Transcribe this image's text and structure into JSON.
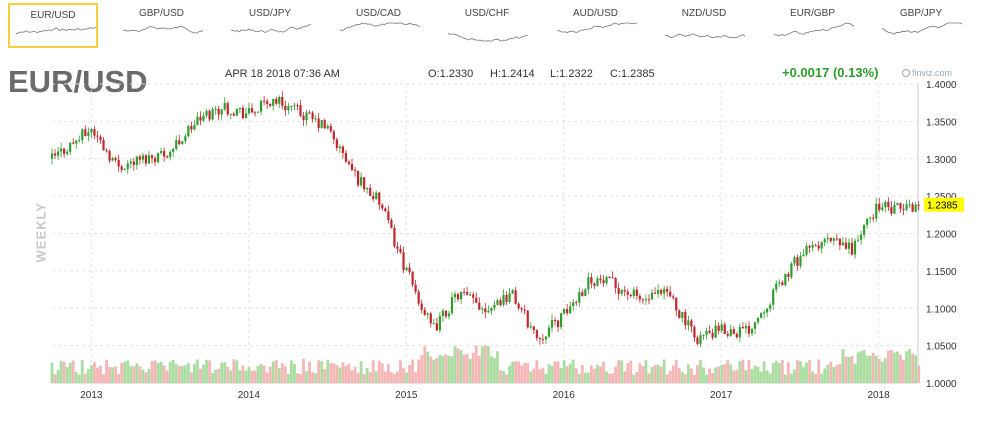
{
  "tabs": [
    {
      "label": "EUR/USD",
      "active": true
    },
    {
      "label": "GBP/USD",
      "active": false
    },
    {
      "label": "USD/JPY",
      "active": false
    },
    {
      "label": "USD/CAD",
      "active": false
    },
    {
      "label": "USD/CHF",
      "active": false
    },
    {
      "label": "AUD/USD",
      "active": false
    },
    {
      "label": "NZD/USD",
      "active": false
    },
    {
      "label": "EUR/GBP",
      "active": false
    },
    {
      "label": "GBP/JPY",
      "active": false
    }
  ],
  "header": {
    "symbol": "EUR/USD",
    "datetime": "APR 18 2018 07:36 AM",
    "open": "O:1.2330",
    "high": "H:1.2414",
    "low": "L:1.2322",
    "close": "C:1.2385",
    "change": "+0.0017 (0.13%)",
    "brand": "finviz.com",
    "period": "WEEKLY"
  },
  "colors": {
    "up": "#2f9e2f",
    "down": "#c0262c",
    "vol_up": "#a9dea0",
    "vol_down": "#f4b6b6",
    "grid": "#e3e3e3",
    "price_tag": "#ffff00",
    "active_tab": "#f4d03f"
  },
  "chart_data": {
    "type": "line",
    "style": "candlestick",
    "ylim": [
      1.0,
      1.4
    ],
    "yticks": [
      "1.4000",
      "1.3500",
      "1.3000",
      "1.2500",
      "1.2000",
      "1.1500",
      "1.1000",
      "1.0500",
      "1.0000"
    ],
    "xticks": [
      "2013",
      "2014",
      "2015",
      "2016",
      "2017",
      "2018"
    ],
    "last_price": "1.2385",
    "grid": true,
    "volume": "shown as shaded bars along the bottom (unlabeled)",
    "series": [
      {
        "name": "EUR/USD",
        "x": [
          "2012-10",
          "2013-01",
          "2013-03",
          "2013-05",
          "2013-07",
          "2013-09",
          "2013-11",
          "2014-01",
          "2014-03",
          "2014-05",
          "2014-07",
          "2014-09",
          "2014-11",
          "2015-01",
          "2015-03",
          "2015-05",
          "2015-07",
          "2015-09",
          "2015-11",
          "2016-01",
          "2016-03",
          "2016-05",
          "2016-07",
          "2016-09",
          "2016-11",
          "2017-01",
          "2017-03",
          "2017-05",
          "2017-07",
          "2017-09",
          "2017-11",
          "2018-01",
          "2018-02",
          "2018-04"
        ],
        "values": [
          1.3,
          1.34,
          1.29,
          1.3,
          1.31,
          1.35,
          1.37,
          1.36,
          1.38,
          1.36,
          1.34,
          1.28,
          1.24,
          1.15,
          1.07,
          1.12,
          1.1,
          1.12,
          1.06,
          1.09,
          1.14,
          1.13,
          1.11,
          1.12,
          1.06,
          1.07,
          1.07,
          1.12,
          1.17,
          1.19,
          1.18,
          1.24,
          1.23,
          1.2385
        ]
      }
    ]
  }
}
